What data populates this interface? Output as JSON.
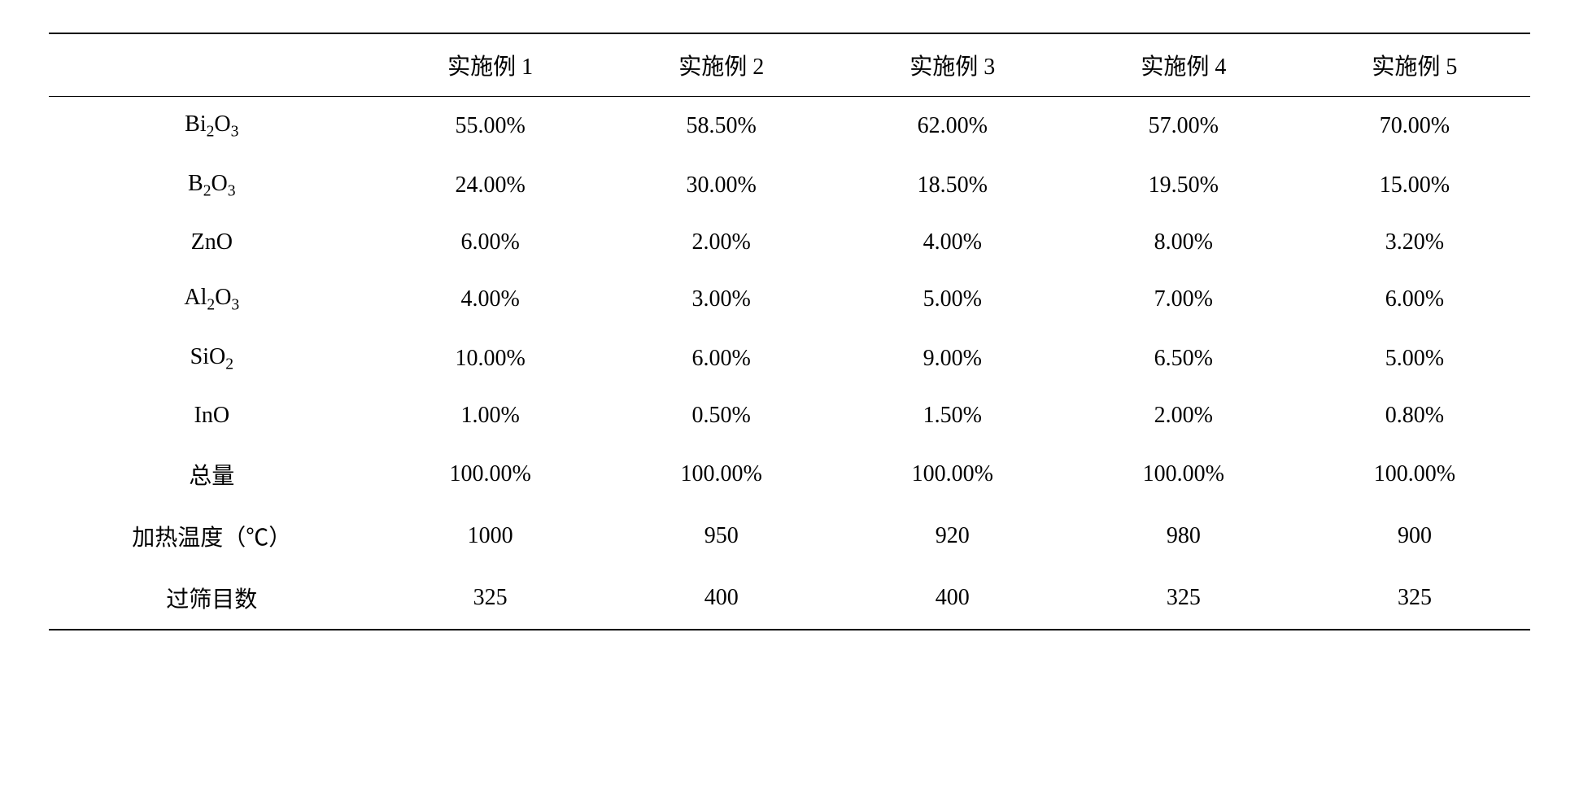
{
  "table": {
    "type": "table",
    "columns": [
      "",
      "实施例 1",
      "实施例 2",
      "实施例 3",
      "实施例 4",
      "实施例 5"
    ],
    "rows": [
      {
        "label_html": "Bi<sub>2</sub>O<sub>3</sub>",
        "label": "Bi2O3",
        "values": [
          "55.00%",
          "58.50%",
          "62.00%",
          "57.00%",
          "70.00%"
        ]
      },
      {
        "label_html": "B<sub>2</sub>O<sub>3</sub>",
        "label": "B2O3",
        "values": [
          "24.00%",
          "30.00%",
          "18.50%",
          "19.50%",
          "15.00%"
        ]
      },
      {
        "label_html": "ZnO",
        "label": "ZnO",
        "values": [
          "6.00%",
          "2.00%",
          "4.00%",
          "8.00%",
          "3.20%"
        ]
      },
      {
        "label_html": "Al<sub>2</sub>O<sub>3</sub>",
        "label": "Al2O3",
        "values": [
          "4.00%",
          "3.00%",
          "5.00%",
          "7.00%",
          "6.00%"
        ]
      },
      {
        "label_html": "SiO<sub>2</sub>",
        "label": "SiO2",
        "values": [
          "10.00%",
          "6.00%",
          "9.00%",
          "6.50%",
          "5.00%"
        ]
      },
      {
        "label_html": "InO",
        "label": "InO",
        "values": [
          "1.00%",
          "0.50%",
          "1.50%",
          "2.00%",
          "0.80%"
        ]
      },
      {
        "label_html": "总量",
        "label": "总量",
        "values": [
          "100.00%",
          "100.00%",
          "100.00%",
          "100.00%",
          "100.00%"
        ]
      },
      {
        "label_html": "加热温度（℃）",
        "label": "加热温度（℃）",
        "values": [
          "1000",
          "950",
          "920",
          "980",
          "900"
        ]
      },
      {
        "label_html": "过筛目数",
        "label": "过筛目数",
        "values": [
          "325",
          "400",
          "400",
          "325",
          "325"
        ]
      }
    ],
    "border_color": "#000000",
    "background_color": "#ffffff",
    "text_color": "#000000",
    "font_size": 28,
    "font_family": "Times New Roman, SimSun, serif",
    "cell_padding_vertical": 18,
    "cell_padding_horizontal": 8,
    "first_col_width_pct": 22,
    "other_col_width_pct": 15.6,
    "top_border_width": 2,
    "header_bottom_border_width": 1.5,
    "bottom_border_width": 2
  }
}
